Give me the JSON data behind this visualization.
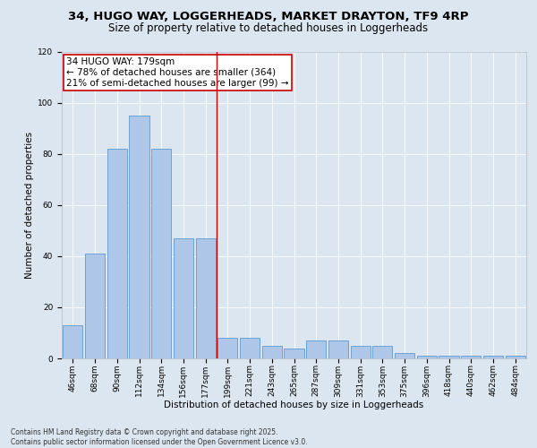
{
  "title_line1": "34, HUGO WAY, LOGGERHEADS, MARKET DRAYTON, TF9 4RP",
  "title_line2": "Size of property relative to detached houses in Loggerheads",
  "xlabel": "Distribution of detached houses by size in Loggerheads",
  "ylabel": "Number of detached properties",
  "categories": [
    "46sqm",
    "68sqm",
    "90sqm",
    "112sqm",
    "134sqm",
    "156sqm",
    "177sqm",
    "199sqm",
    "221sqm",
    "243sqm",
    "265sqm",
    "287sqm",
    "309sqm",
    "331sqm",
    "353sqm",
    "375sqm",
    "396sqm",
    "418sqm",
    "440sqm",
    "462sqm",
    "484sqm"
  ],
  "values": [
    13,
    41,
    82,
    95,
    82,
    47,
    47,
    8,
    8,
    5,
    4,
    7,
    7,
    5,
    5,
    2,
    1,
    1,
    1,
    1,
    1
  ],
  "bar_color": "#aec6e8",
  "bar_edge_color": "#5b9bd5",
  "vline_x": 6.5,
  "vline_color": "#cc0000",
  "annotation_text": "34 HUGO WAY: 179sqm\n← 78% of detached houses are smaller (364)\n21% of semi-detached houses are larger (99) →",
  "annotation_box_color": "#ffffff",
  "annotation_box_edge": "#cc0000",
  "ylim": [
    0,
    120
  ],
  "yticks": [
    0,
    20,
    40,
    60,
    80,
    100,
    120
  ],
  "background_color": "#dce6f0",
  "plot_bg_color": "#dce6f0",
  "grid_color": "#ffffff",
  "footer_text": "Contains HM Land Registry data © Crown copyright and database right 2025.\nContains public sector information licensed under the Open Government Licence v3.0.",
  "title_fontsize": 9.5,
  "subtitle_fontsize": 8.5,
  "axis_label_fontsize": 7.5,
  "tick_fontsize": 6.5,
  "annotation_fontsize": 7.5,
  "footer_fontsize": 5.5
}
